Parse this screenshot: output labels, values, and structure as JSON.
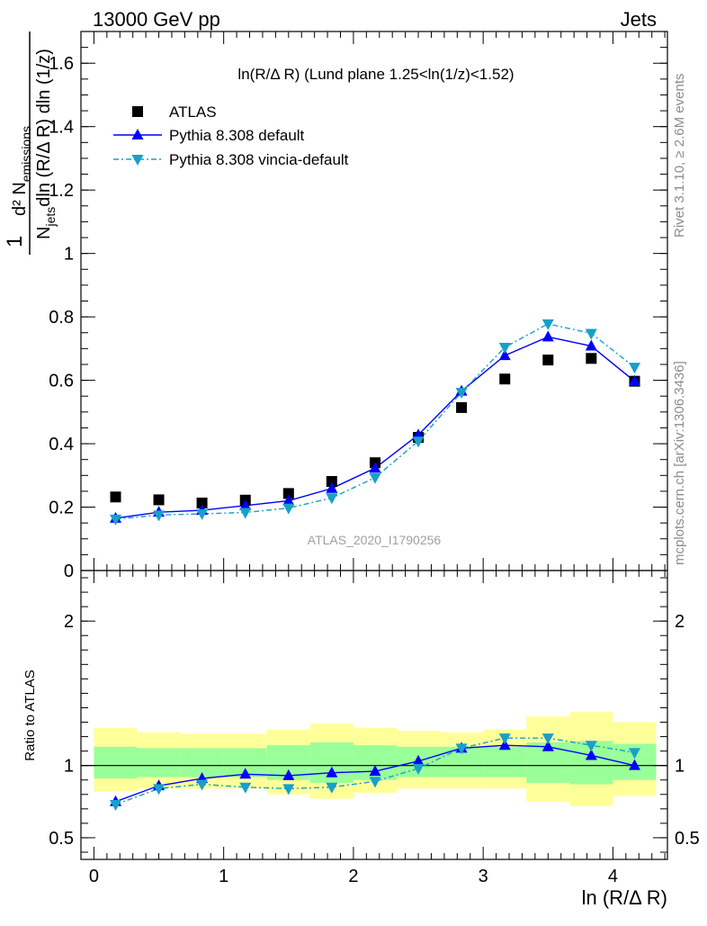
{
  "header": {
    "left": "13000 GeV pp",
    "right": "Jets"
  },
  "side_labels": {
    "rivet": "Rivet 3.1.10, ≥ 2.6M events",
    "mcplots": "mcplots.cern.ch [arXiv:1306.3436]"
  },
  "chart_data": [
    {
      "type": "line",
      "title": "ln(R/Δ R) (Lund plane 1.25<ln(1/z)<1.52)",
      "ylabel": "1/N_jets d²N_emissions / dln(R/Δ R) dln(1/z)",
      "watermark": "ATLAS_2020_I1790256",
      "xlim": [
        -0.1,
        4.42
      ],
      "ylim": [
        0,
        1.7
      ],
      "yticks": [
        0,
        0.2,
        0.4,
        0.6,
        0.8,
        1,
        1.2,
        1.4,
        1.6
      ],
      "yticklabels": [
        "0",
        "0.2",
        "0.4",
        "0.6",
        "0.8",
        "1",
        "1.2",
        "1.4",
        "1.6"
      ],
      "x": [
        0.167,
        0.5,
        0.833,
        1.167,
        1.5,
        1.833,
        2.167,
        2.5,
        2.833,
        3.167,
        3.5,
        3.833,
        4.167
      ],
      "series": [
        {
          "name": "ATLAS",
          "color": "#000000",
          "marker": "square",
          "values": [
            0.232,
            0.223,
            0.213,
            0.222,
            0.243,
            0.281,
            0.34,
            0.42,
            0.514,
            0.604,
            0.664,
            0.669,
            0.597
          ]
        },
        {
          "name": "Pythia 8.308 default",
          "color": "#0000ff",
          "marker": "triangle-up",
          "dash": "",
          "values": [
            0.165,
            0.184,
            0.19,
            0.205,
            0.22,
            0.259,
            0.323,
            0.428,
            0.566,
            0.678,
            0.737,
            0.708,
            0.597
          ]
        },
        {
          "name": "Pythia 8.308 vincia-default",
          "color": "#17a0c8",
          "marker": "triangle-down",
          "dash": "6,3,2,3",
          "values": [
            0.162,
            0.175,
            0.179,
            0.183,
            0.197,
            0.229,
            0.293,
            0.408,
            0.562,
            0.704,
            0.778,
            0.748,
            0.641
          ]
        }
      ]
    },
    {
      "type": "line",
      "ylabel": "Ratio to ATLAS",
      "xlabel": "ln (R/Δ R)",
      "xlim": [
        -0.1,
        4.42
      ],
      "ylim": [
        0.35,
        2.35
      ],
      "xticks": [
        0,
        1,
        2,
        3,
        4
      ],
      "xticklabels": [
        "0",
        "1",
        "2",
        "3",
        "4"
      ],
      "yticks": [
        0.5,
        1,
        2
      ],
      "yticklabels": [
        "0.5",
        "1",
        "2"
      ],
      "x": [
        0.167,
        0.5,
        0.833,
        1.167,
        1.5,
        1.833,
        2.167,
        2.5,
        2.833,
        3.167,
        3.5,
        3.833,
        4.167
      ],
      "bin_edges": [
        0,
        0.333,
        0.667,
        1.0,
        1.333,
        1.667,
        2.0,
        2.333,
        2.667,
        3.0,
        3.333,
        3.667,
        4.0,
        4.333
      ],
      "band_outer": [
        [
          0.82,
          1.26
        ],
        [
          0.84,
          1.23
        ],
        [
          0.84,
          1.22
        ],
        [
          0.84,
          1.22
        ],
        [
          0.8,
          1.25
        ],
        [
          0.77,
          1.29
        ],
        [
          0.81,
          1.26
        ],
        [
          0.84,
          1.24
        ],
        [
          0.84,
          1.23
        ],
        [
          0.84,
          1.25
        ],
        [
          0.75,
          1.34
        ],
        [
          0.72,
          1.37
        ],
        [
          0.79,
          1.3
        ]
      ],
      "band_inner": [
        [
          0.91,
          1.13
        ],
        [
          0.92,
          1.12
        ],
        [
          0.92,
          1.12
        ],
        [
          0.92,
          1.12
        ],
        [
          0.9,
          1.14
        ],
        [
          0.88,
          1.16
        ],
        [
          0.9,
          1.14
        ],
        [
          0.92,
          1.13
        ],
        [
          0.92,
          1.13
        ],
        [
          0.92,
          1.13
        ],
        [
          0.88,
          1.16
        ],
        [
          0.87,
          1.17
        ],
        [
          0.9,
          1.15
        ]
      ],
      "reference": 1,
      "series": [
        {
          "name": "Pythia 8.308 default",
          "color": "#0000ff",
          "marker": "triangle-up",
          "dash": "",
          "values": [
            0.75,
            0.86,
            0.91,
            0.94,
            0.93,
            0.95,
            0.96,
            1.03,
            1.12,
            1.14,
            1.13,
            1.07,
            1.0
          ]
        },
        {
          "name": "Pythia 8.308 vincia-default",
          "color": "#17a0c8",
          "marker": "triangle-down",
          "dash": "6,3,2,3",
          "values": [
            0.73,
            0.84,
            0.87,
            0.85,
            0.84,
            0.85,
            0.89,
            0.98,
            1.12,
            1.19,
            1.19,
            1.14,
            1.09
          ]
        }
      ],
      "band_colors": {
        "outer": "#ffff99",
        "inner": "#99ff99"
      }
    }
  ]
}
